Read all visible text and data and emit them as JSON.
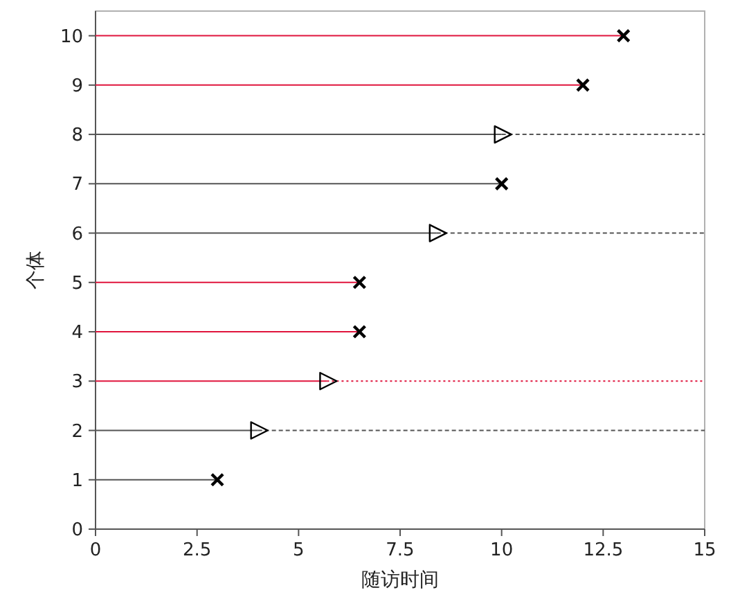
{
  "chart_data": {
    "type": "line",
    "xlabel": "随访时间",
    "ylabel": "个体",
    "xlim": [
      0,
      15
    ],
    "xticks": [
      0,
      2.5,
      5,
      7.5,
      10,
      12.5,
      15
    ],
    "ylim": [
      0,
      10.5
    ],
    "yticks": [
      0,
      1,
      2,
      3,
      4,
      5,
      6,
      7,
      8,
      9,
      10
    ],
    "grid": false,
    "marker": "none",
    "series": [
      {
        "color": "#e0143c",
        "line_style": "solid",
        "x": [
          0,
          13
        ],
        "values": [
          10,
          10
        ]
      },
      {
        "color": "#e0143c",
        "line_style": "solid",
        "x": [
          0,
          12
        ],
        "values": [
          9,
          9
        ]
      },
      {
        "color": "#555555",
        "line_style": "solid",
        "x": [
          0,
          10
        ],
        "values": [
          8,
          8
        ]
      },
      {
        "color": "#555555",
        "line_style": "dashed",
        "x": [
          10,
          15
        ],
        "values": [
          8,
          8
        ]
      },
      {
        "color": "#555555",
        "line_style": "solid",
        "x": [
          0,
          10
        ],
        "values": [
          7,
          7
        ]
      },
      {
        "color": "#555555",
        "line_style": "solid",
        "x": [
          0,
          8.4
        ],
        "values": [
          6,
          6
        ]
      },
      {
        "color": "#555555",
        "line_style": "dashed",
        "x": [
          8.4,
          15
        ],
        "values": [
          6,
          6
        ]
      },
      {
        "color": "#e0143c",
        "line_style": "solid",
        "x": [
          0,
          6.5
        ],
        "values": [
          5,
          5
        ]
      },
      {
        "color": "#e0143c",
        "line_style": "solid",
        "x": [
          0,
          6.5
        ],
        "values": [
          4,
          4
        ]
      },
      {
        "color": "#e0143c",
        "line_style": "solid",
        "x": [
          0,
          5.7
        ],
        "values": [
          3,
          3
        ]
      },
      {
        "color": "#e0143c",
        "line_style": "dotted",
        "x": [
          5.7,
          15
        ],
        "values": [
          3,
          3
        ]
      },
      {
        "color": "#555555",
        "line_style": "solid",
        "x": [
          0,
          4
        ],
        "values": [
          2,
          2
        ]
      },
      {
        "color": "#555555",
        "line_style": "dashed",
        "x": [
          4,
          15
        ],
        "values": [
          2,
          2
        ]
      },
      {
        "color": "#555555",
        "line_style": "solid",
        "x": [
          0,
          3
        ],
        "values": [
          1,
          1
        ]
      },
      {
        "type": "scatter",
        "color": "#000000",
        "marker": "cross",
        "x": [
          13,
          12,
          10,
          6.5,
          6.5,
          3
        ],
        "values": [
          10,
          9,
          7,
          5,
          4,
          1
        ]
      },
      {
        "type": "scatter",
        "color": "#000000",
        "marker": "triangle",
        "x": [
          10,
          8.4,
          5.7,
          4
        ],
        "values": [
          8,
          6,
          3,
          2
        ]
      }
    ]
  }
}
